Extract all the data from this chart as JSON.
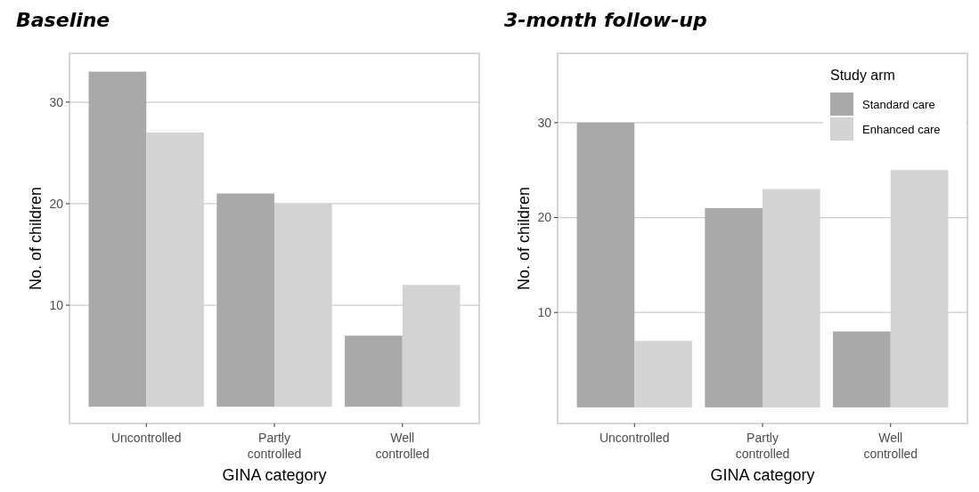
{
  "chart_data": [
    {
      "type": "bar",
      "title": "Baseline",
      "xlabel": "GINA category",
      "ylabel": "No. of children",
      "categories": [
        "Uncontrolled",
        "Partly\ncontrolled",
        "Well\ncontrolled"
      ],
      "series": [
        {
          "color": "#a9a9a9",
          "values": [
            33,
            21,
            7
          ]
        },
        {
          "color": "#d3d3d3",
          "values": [
            27,
            20,
            12
          ]
        }
      ],
      "ylim": [
        -1.65,
        34.8
      ],
      "yticks": [
        10,
        20,
        30
      ],
      "grid": "y",
      "legend": false
    },
    {
      "type": "bar",
      "title": "3-month follow-up",
      "xlabel": "GINA category",
      "ylabel": "No. of children",
      "legend_title": "Study arm",
      "categories": [
        "Uncontrolled",
        "Partly\ncontrolled",
        "Well\ncontrolled"
      ],
      "series": [
        {
          "name": "Standard care",
          "color": "#a9a9a9",
          "values": [
            30,
            21,
            8
          ]
        },
        {
          "name": "Enhanced care",
          "color": "#d3d3d3",
          "values": [
            7,
            23,
            25
          ]
        }
      ],
      "ylim": [
        -1.7,
        37.3
      ],
      "yticks": [
        10,
        20,
        30
      ],
      "grid": "y",
      "legend": "top right"
    }
  ]
}
